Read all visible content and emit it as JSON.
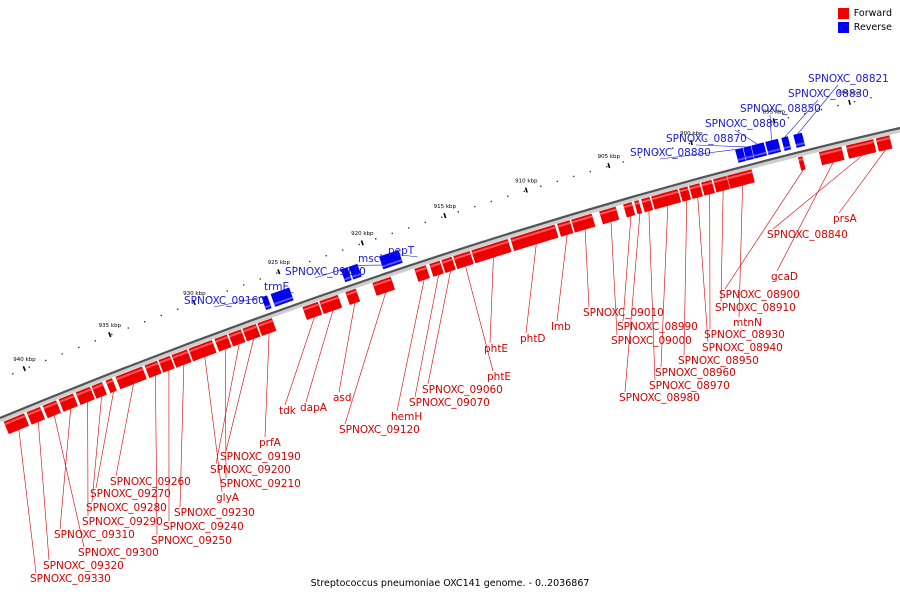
{
  "legend": {
    "forward_label": "Forward",
    "reverse_label": "Reverse",
    "forward_color": "#ee0000",
    "reverse_color": "#0000ee"
  },
  "caption": "Streptococcus pneumoniae OXC141 genome. - 0..2036867",
  "ticks": [
    {
      "label": "890 kbp",
      "kbp": 890
    },
    {
      "label": "895 kbp",
      "kbp": 895
    },
    {
      "label": "900 kbp",
      "kbp": 900
    },
    {
      "label": "905 kbp",
      "kbp": 905
    },
    {
      "label": "910 kbp",
      "kbp": 910
    },
    {
      "label": "915 kbp",
      "kbp": 915
    },
    {
      "label": "920 kbp",
      "kbp": 920
    },
    {
      "label": "925 kbp",
      "kbp": 925
    },
    {
      "label": "930 kbp",
      "kbp": 930
    },
    {
      "label": "935 kbp",
      "kbp": 935
    },
    {
      "label": "940 kbp",
      "kbp": 940
    }
  ],
  "forward_genes": [
    "prsA",
    "SPNOXC_08840",
    "gcaD",
    "SPNOXC_08900",
    "mtnN",
    "SPNOXC_08910",
    "SPNOXC_08930",
    "SPNOXC_08940",
    "SPNOXC_08950",
    "SPNOXC_08960",
    "SPNOXC_08970",
    "SPNOXC_08980",
    "SPNOXC_08990",
    "SPNOXC_09000",
    "SPNOXC_09010",
    "lmb",
    "phtD",
    "phtE",
    "phtE",
    "SPNOXC_09060",
    "SPNOXC_09070",
    "hemH",
    "SPNOXC_09120",
    "asd",
    "dapA",
    "tdk",
    "prfA",
    "SPNOXC_09190",
    "SPNOXC_09200",
    "SPNOXC_09210",
    "glyA",
    "SPNOXC_09230",
    "SPNOXC_09240",
    "SPNOXC_09250",
    "SPNOXC_09260",
    "SPNOXC_09270",
    "SPNOXC_09280",
    "SPNOXC_09290",
    "SPNOXC_09310",
    "SPNOXC_09300",
    "SPNOXC_09320",
    "SPNOXC_09330"
  ],
  "reverse_genes": [
    "SPNOXC_08821",
    "SPNOXC_08830",
    "SPNOXC_08850",
    "SPNOXC_08860",
    "SPNOXC_08870",
    "SPNOXC_08880",
    "pepT",
    "mscL",
    "SPNOXC_09110",
    "trmE",
    "SPNOXC_09160"
  ]
}
